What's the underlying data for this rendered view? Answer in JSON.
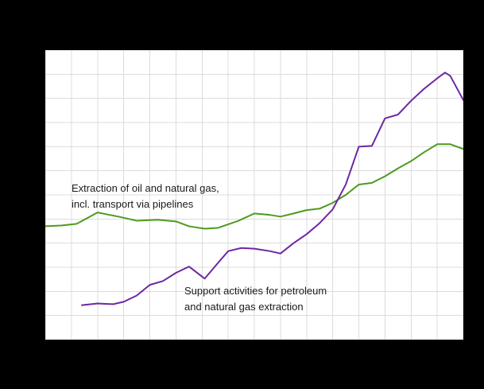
{
  "colors": {
    "background": "#000000",
    "plot_background": "#ffffff",
    "gridline": "#dcdcdc",
    "annotation_text": "#1a1a1a",
    "series_extraction": "#4e9a1f",
    "series_support": "#6d28a0"
  },
  "chart_data": {
    "type": "line",
    "grid": true,
    "axis_tick_labels_visible": false,
    "x_range": [
      0,
      16
    ],
    "y_range": [
      0,
      12
    ],
    "series": [
      {
        "name": "Extraction of oil and natural gas, incl. transport via pipelines",
        "color": "#4e9a1f",
        "points": [
          [
            0,
            4.7
          ],
          [
            0.6,
            4.73
          ],
          [
            1.2,
            4.8
          ],
          [
            2,
            5.27
          ],
          [
            2.8,
            5.1
          ],
          [
            3.5,
            4.93
          ],
          [
            4.3,
            4.97
          ],
          [
            5,
            4.9
          ],
          [
            5.5,
            4.7
          ],
          [
            6.1,
            4.6
          ],
          [
            6.6,
            4.63
          ],
          [
            7.4,
            4.93
          ],
          [
            8,
            5.23
          ],
          [
            8.6,
            5.17
          ],
          [
            9,
            5.1
          ],
          [
            9.5,
            5.23
          ],
          [
            10,
            5.37
          ],
          [
            10.5,
            5.43
          ],
          [
            11,
            5.67
          ],
          [
            11.5,
            6.0
          ],
          [
            12,
            6.43
          ],
          [
            12.5,
            6.5
          ],
          [
            13,
            6.77
          ],
          [
            13.5,
            7.1
          ],
          [
            14,
            7.4
          ],
          [
            14.5,
            7.77
          ],
          [
            15,
            8.1
          ],
          [
            15.5,
            8.1
          ],
          [
            16,
            7.9
          ]
        ]
      },
      {
        "name": "Support activities for petroleum and natural gas extraction",
        "color": "#6d28a0",
        "points": [
          [
            1.4,
            1.43
          ],
          [
            2,
            1.5
          ],
          [
            2.6,
            1.47
          ],
          [
            3,
            1.57
          ],
          [
            3.5,
            1.83
          ],
          [
            4,
            2.27
          ],
          [
            4.5,
            2.43
          ],
          [
            5,
            2.77
          ],
          [
            5.5,
            3.03
          ],
          [
            6.1,
            2.53
          ],
          [
            6.6,
            3.17
          ],
          [
            7,
            3.67
          ],
          [
            7.5,
            3.8
          ],
          [
            8,
            3.77
          ],
          [
            8.6,
            3.67
          ],
          [
            9,
            3.57
          ],
          [
            9.5,
            4.0
          ],
          [
            10,
            4.37
          ],
          [
            10.5,
            4.83
          ],
          [
            11,
            5.4
          ],
          [
            11.5,
            6.43
          ],
          [
            12,
            8.0
          ],
          [
            12.5,
            8.03
          ],
          [
            13,
            9.17
          ],
          [
            13.5,
            9.33
          ],
          [
            14,
            9.9
          ],
          [
            14.5,
            10.4
          ],
          [
            15,
            10.83
          ],
          [
            15.3,
            11.07
          ],
          [
            15.5,
            10.93
          ],
          [
            16,
            9.93
          ]
        ]
      }
    ],
    "annotations": [
      {
        "lines": [
          "Extraction of oil and natural gas,",
          "incl. transport via pipelines"
        ]
      },
      {
        "lines": [
          "Support activities for petroleum",
          "and natural gas extraction"
        ]
      }
    ]
  }
}
